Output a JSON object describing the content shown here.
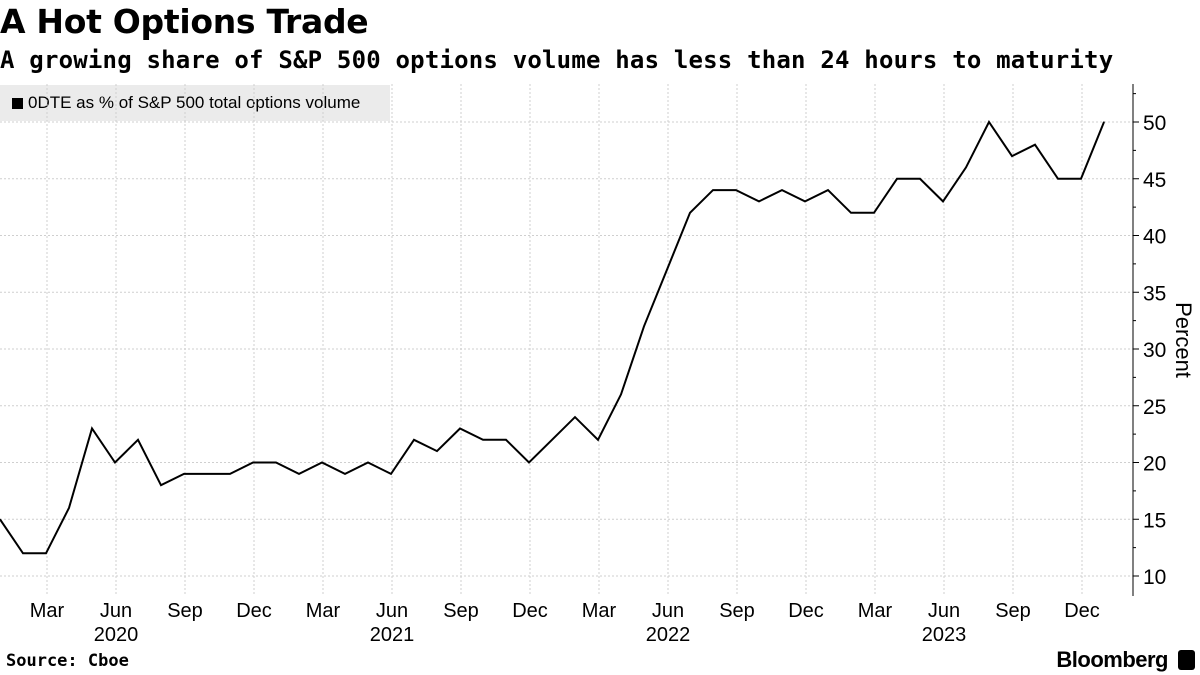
{
  "header": {
    "title": "A Hot Options Trade",
    "subtitle": "A growing share of S&P 500 options volume has less than 24 hours to maturity"
  },
  "legend": {
    "label": "0DTE as % of S&P 500 total options volume",
    "color": "#000000"
  },
  "footer": {
    "source": "Source: Cboe",
    "brand": "Bloomberg",
    "brand_icon": "bloomberg-terminal-icon"
  },
  "chart_data": {
    "type": "line",
    "title": "A Hot Options Trade",
    "subtitle": "A growing share of S&P 500 options volume has less than 24 hours to maturity",
    "ylabel": "Percent",
    "xlabel": "",
    "ylim": [
      8,
      53
    ],
    "yticks": [
      10,
      15,
      20,
      25,
      30,
      35,
      40,
      45,
      50
    ],
    "grid": true,
    "legend_position": "top-left",
    "x_start": "2020-01",
    "x_ticks": [
      {
        "label": "Mar",
        "month_index": 2
      },
      {
        "label": "Jun",
        "month_index": 5
      },
      {
        "label": "Sep",
        "month_index": 8
      },
      {
        "label": "Dec",
        "month_index": 11
      },
      {
        "label": "Mar",
        "month_index": 14
      },
      {
        "label": "Jun",
        "month_index": 17
      },
      {
        "label": "Sep",
        "month_index": 20
      },
      {
        "label": "Dec",
        "month_index": 23
      },
      {
        "label": "Mar",
        "month_index": 26
      },
      {
        "label": "Jun",
        "month_index": 29
      },
      {
        "label": "Sep",
        "month_index": 32
      },
      {
        "label": "Dec",
        "month_index": 35
      },
      {
        "label": "Mar",
        "month_index": 38
      },
      {
        "label": "Jun",
        "month_index": 41
      },
      {
        "label": "Sep",
        "month_index": 44
      },
      {
        "label": "Dec",
        "month_index": 47
      }
    ],
    "year_labels": [
      {
        "label": "2020",
        "month_index": 5
      },
      {
        "label": "2021",
        "month_index": 17
      },
      {
        "label": "2022",
        "month_index": 29
      },
      {
        "label": "2023",
        "month_index": 41
      }
    ],
    "series": [
      {
        "name": "0DTE as % of S&P 500 total options volume",
        "color": "#000000",
        "values": [
          15,
          12,
          12,
          16,
          23,
          20,
          22,
          18,
          19,
          19,
          19,
          20,
          20,
          19,
          20,
          19,
          20,
          19,
          22,
          21,
          23,
          22,
          22,
          20,
          22,
          24,
          22,
          26,
          32,
          37,
          42,
          44,
          44,
          43,
          44,
          43,
          44,
          42,
          42,
          45,
          45,
          43,
          46,
          50,
          47,
          48,
          45,
          45,
          50
        ]
      }
    ]
  }
}
